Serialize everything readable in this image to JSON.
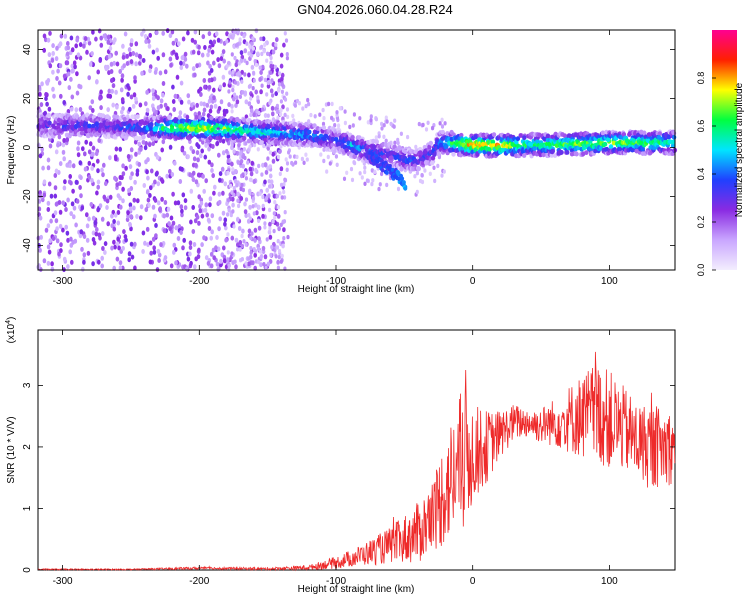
{
  "title": "GN04.2026.060.04.28.R24",
  "chart_data": [
    {
      "type": "heatmap",
      "xlabel": "Height of straight line (km)",
      "ylabel": "Frequency (Hz)",
      "xlim": [
        -318,
        148
      ],
      "ylim": [
        -50,
        48
      ],
      "xticks": [
        -300,
        -200,
        -100,
        0,
        100
      ],
      "xtick_labels": [
        "-300",
        "-200",
        "-100",
        "0",
        "100"
      ],
      "yticks": [
        -40,
        -20,
        0,
        20,
        40
      ],
      "ytick_labels": [
        "-40",
        "-20",
        "0",
        "20",
        "40"
      ],
      "colorbar": {
        "label": "Normalized spectral amplitude",
        "range": [
          0,
          1
        ],
        "ticks": [
          0.0,
          0.2,
          0.4,
          0.6,
          0.8
        ],
        "tick_labels": [
          "0.0",
          "0.2",
          "0.4",
          "0.6",
          "0.8"
        ],
        "colors": [
          "#f3eefe",
          "#c9a6ff",
          "#8a2be2",
          "#2040ff",
          "#00e5ff",
          "#00ff40",
          "#ffff00",
          "#ff2000",
          "#ff0090"
        ]
      },
      "ridge": {
        "x": [
          -318,
          -300,
          -280,
          -260,
          -240,
          -220,
          -200,
          -180,
          -160,
          -140,
          -120,
          -100,
          -90,
          -80,
          -70,
          -60,
          -50,
          -40,
          -30,
          -25,
          -20,
          -10,
          0,
          20,
          40,
          60,
          80,
          100,
          120,
          148
        ],
        "y": [
          9,
          9,
          9,
          8.5,
          8,
          8,
          8,
          7.5,
          6.5,
          6,
          5,
          3,
          1,
          -1,
          -2,
          -3,
          -5,
          -5,
          -2,
          2,
          2,
          1.5,
          1,
          0.8,
          1,
          1.2,
          1.5,
          2,
          2,
          2
        ],
        "amplitude": [
          0.3,
          0.35,
          0.35,
          0.35,
          0.4,
          0.7,
          0.75,
          0.7,
          0.55,
          0.5,
          0.45,
          0.35,
          0.5,
          0.45,
          0.35,
          0.35,
          0.4,
          0.35,
          0.35,
          0.45,
          0.55,
          0.7,
          0.85,
          0.8,
          0.6,
          0.65,
          0.7,
          0.7,
          0.65,
          0.6
        ]
      },
      "spur": {
        "x": [
          -78,
          -70,
          -62,
          -55,
          -50
        ],
        "y": [
          -3,
          -6,
          -9,
          -12,
          -15
        ],
        "amplitude": [
          0.3,
          0.35,
          0.35,
          0.4,
          0.45
        ]
      }
    },
    {
      "type": "line",
      "xlabel": "Height of straight line (km)",
      "ylabel": "SNR (10 * V/V)",
      "multiplier": "(x10",
      "multiplier_exp": "4",
      "multiplier_close": ")",
      "xlim": [
        -318,
        148
      ],
      "ylim": [
        0,
        3.9
      ],
      "xticks": [
        -300,
        -200,
        -100,
        0,
        100
      ],
      "xtick_labels": [
        "-300",
        "-200",
        "-100",
        "0",
        "100"
      ],
      "yticks": [
        0,
        1,
        2,
        3
      ],
      "ytick_labels": [
        "0",
        "1",
        "2",
        "3"
      ],
      "series": [
        {
          "color": "#ee2a2a",
          "envelope": {
            "x": [
              -318,
              -250,
              -200,
              -150,
              -120,
              -100,
              -80,
              -60,
              -40,
              -30,
              -20,
              -10,
              -5,
              0,
              10,
              20,
              30,
              40,
              50,
              60,
              70,
              80,
              90,
              100,
              110,
              120,
              130,
              148
            ],
            "mean": [
              0.01,
              0.01,
              0.03,
              0.02,
              0.04,
              0.12,
              0.25,
              0.4,
              0.6,
              0.85,
              1.3,
              1.7,
              1.9,
              1.9,
              2.0,
              2.2,
              2.4,
              2.4,
              2.35,
              2.4,
              2.45,
              2.5,
              2.55,
              2.45,
              2.3,
              2.1,
              2.0,
              2.0
            ],
            "amp": [
              0.01,
              0.01,
              0.02,
              0.02,
              0.04,
              0.1,
              0.18,
              0.3,
              0.5,
              0.6,
              0.9,
              1.1,
              1.4,
              0.8,
              0.6,
              0.4,
              0.3,
              0.25,
              0.3,
              0.4,
              0.55,
              0.7,
              0.85,
              0.8,
              0.7,
              0.65,
              0.7,
              0.6
            ]
          }
        }
      ]
    }
  ]
}
